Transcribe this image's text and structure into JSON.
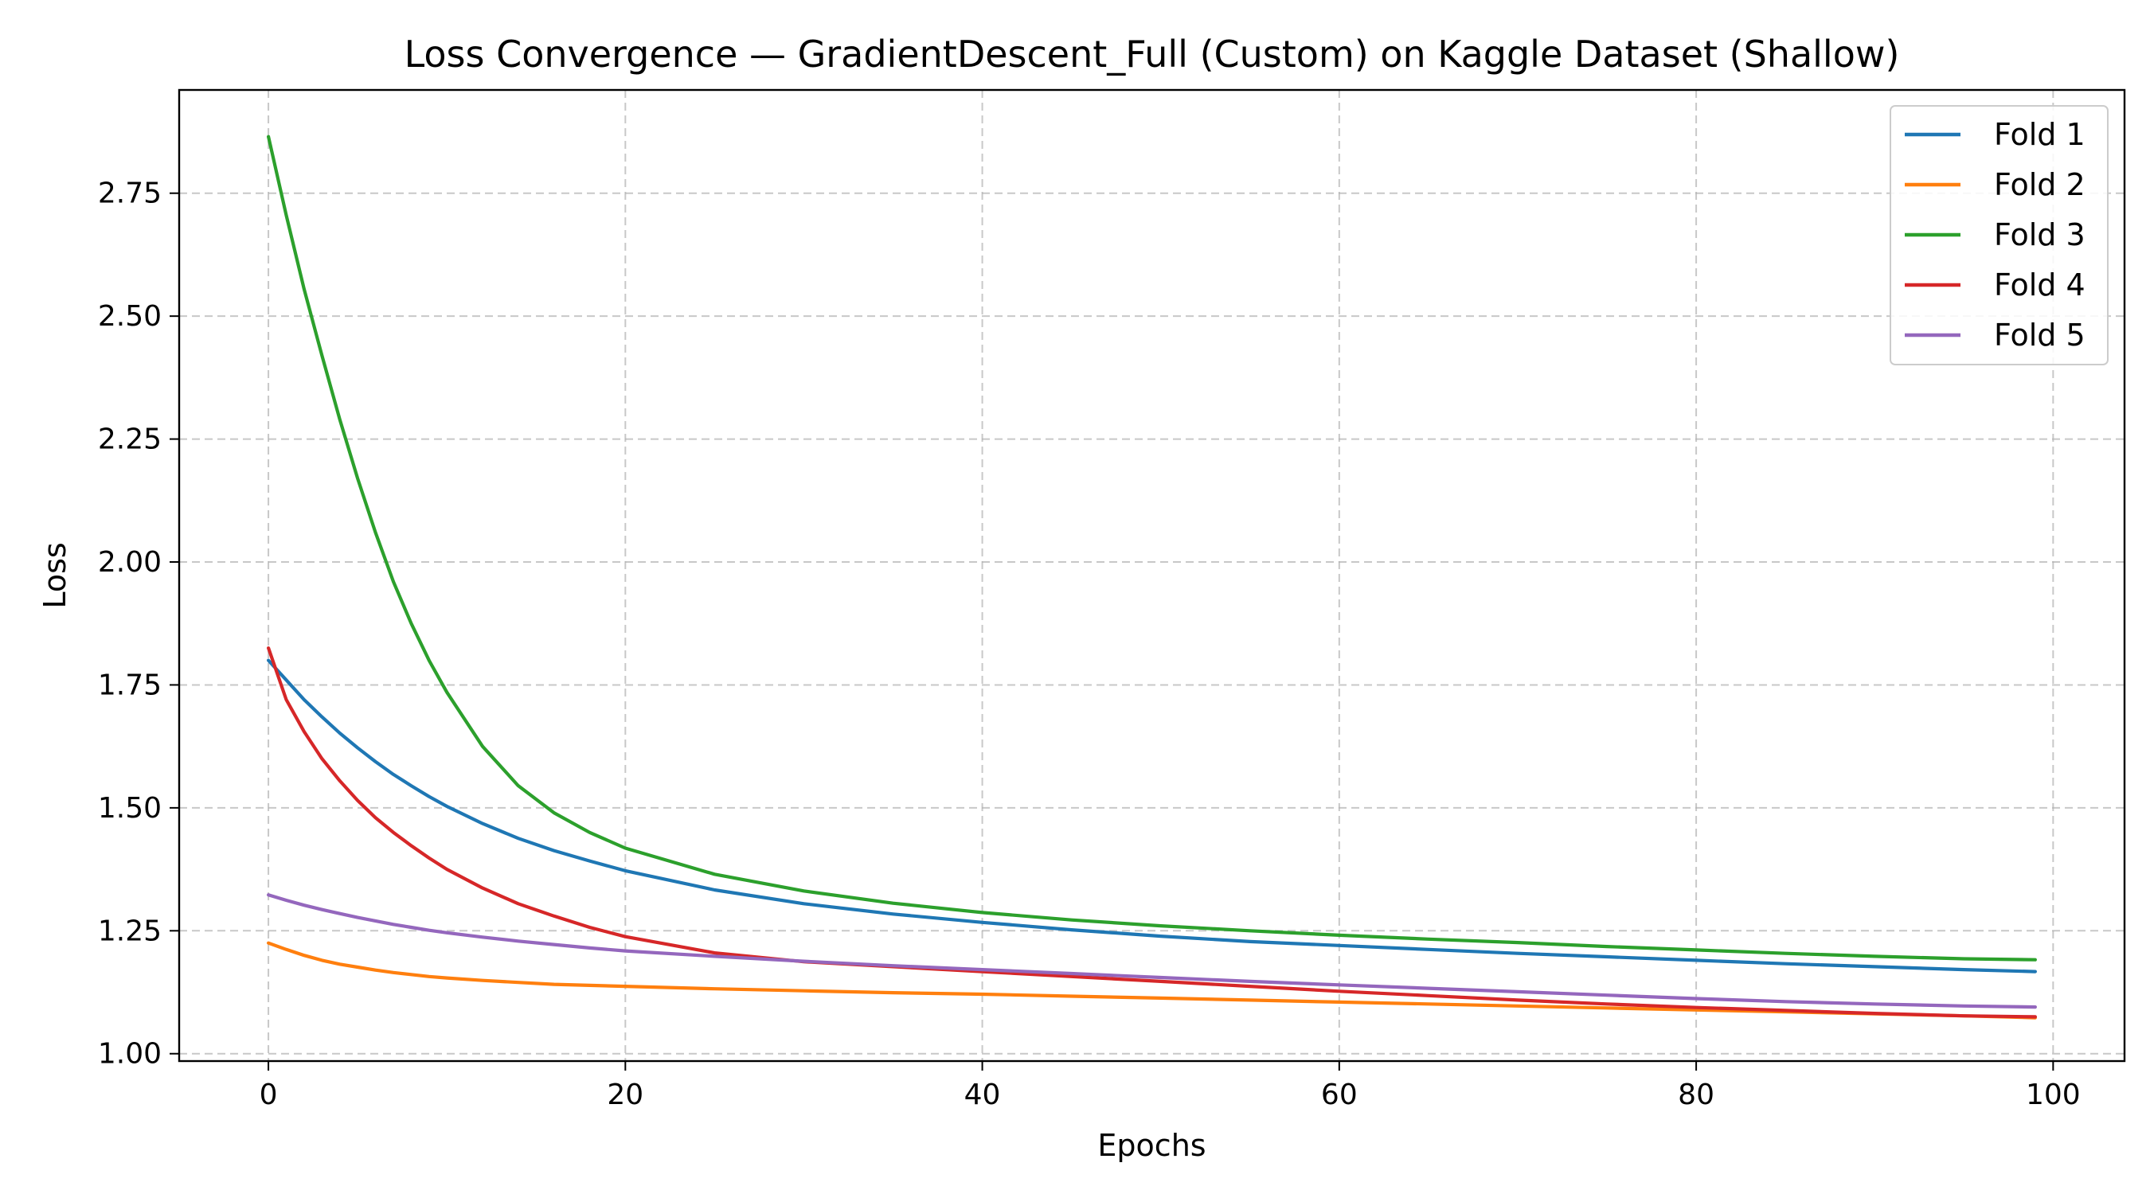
{
  "chart_data": {
    "type": "line",
    "title": "Loss Convergence — GradientDescent_Full (Custom) on Kaggle Dataset (Shallow)",
    "xlabel": "Epochs",
    "ylabel": "Loss",
    "xlim": [
      -5,
      104
    ],
    "ylim": [
      0.985,
      2.96
    ],
    "xticks": [
      0,
      20,
      40,
      60,
      80,
      100
    ],
    "yticks": [
      1.0,
      1.25,
      1.5,
      1.75,
      2.0,
      2.25,
      2.5,
      2.75
    ],
    "xtick_labels": [
      "0",
      "20",
      "40",
      "60",
      "80",
      "100"
    ],
    "ytick_labels": [
      "1.00",
      "1.25",
      "1.50",
      "1.75",
      "2.00",
      "2.25",
      "2.50",
      "2.75"
    ],
    "grid": true,
    "legend_position": "upper right",
    "x": [
      0,
      1,
      2,
      3,
      4,
      5,
      6,
      7,
      8,
      9,
      10,
      12,
      14,
      16,
      18,
      20,
      25,
      30,
      35,
      40,
      45,
      50,
      55,
      60,
      65,
      70,
      75,
      80,
      85,
      90,
      95,
      99
    ],
    "series": [
      {
        "name": "Fold 1",
        "color": "#1f77b4",
        "values": [
          1.8,
          1.76,
          1.72,
          1.685,
          1.652,
          1.622,
          1.594,
          1.568,
          1.545,
          1.523,
          1.503,
          1.468,
          1.438,
          1.413,
          1.392,
          1.372,
          1.333,
          1.305,
          1.284,
          1.267,
          1.252,
          1.239,
          1.228,
          1.22,
          1.212,
          1.204,
          1.197,
          1.19,
          1.183,
          1.177,
          1.171,
          1.167
        ]
      },
      {
        "name": "Fold 2",
        "color": "#ff7f0e",
        "values": [
          1.225,
          1.212,
          1.2,
          1.19,
          1.182,
          1.176,
          1.17,
          1.165,
          1.161,
          1.157,
          1.154,
          1.149,
          1.145,
          1.141,
          1.139,
          1.137,
          1.132,
          1.128,
          1.124,
          1.121,
          1.117,
          1.113,
          1.109,
          1.105,
          1.101,
          1.097,
          1.093,
          1.089,
          1.085,
          1.081,
          1.077,
          1.073
        ]
      },
      {
        "name": "Fold 3",
        "color": "#2ca02c",
        "values": [
          2.865,
          2.705,
          2.555,
          2.42,
          2.29,
          2.17,
          2.06,
          1.96,
          1.875,
          1.8,
          1.735,
          1.625,
          1.545,
          1.49,
          1.45,
          1.418,
          1.365,
          1.331,
          1.306,
          1.287,
          1.272,
          1.26,
          1.25,
          1.241,
          1.233,
          1.226,
          1.218,
          1.211,
          1.204,
          1.198,
          1.193,
          1.191
        ]
      },
      {
        "name": "Fold 4",
        "color": "#d62728",
        "values": [
          1.825,
          1.72,
          1.655,
          1.6,
          1.555,
          1.515,
          1.48,
          1.45,
          1.423,
          1.398,
          1.375,
          1.337,
          1.305,
          1.28,
          1.257,
          1.238,
          1.205,
          1.187,
          1.177,
          1.167,
          1.157,
          1.147,
          1.137,
          1.127,
          1.118,
          1.109,
          1.101,
          1.094,
          1.088,
          1.082,
          1.077,
          1.075
        ]
      },
      {
        "name": "Fold 5",
        "color": "#9467bd",
        "values": [
          1.323,
          1.312,
          1.302,
          1.293,
          1.285,
          1.277,
          1.27,
          1.263,
          1.257,
          1.251,
          1.246,
          1.237,
          1.229,
          1.222,
          1.215,
          1.209,
          1.198,
          1.188,
          1.179,
          1.171,
          1.163,
          1.155,
          1.147,
          1.14,
          1.133,
          1.126,
          1.119,
          1.112,
          1.106,
          1.101,
          1.097,
          1.095
        ]
      }
    ]
  }
}
